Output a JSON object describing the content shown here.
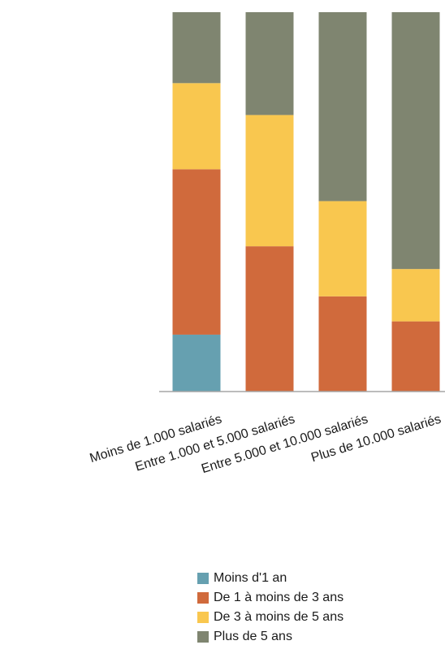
{
  "chart_data": {
    "type": "bar",
    "stacked": true,
    "normalized": true,
    "categories": [
      "Moins de 1.000 salariés",
      "Entre 1.000 et 5.000 salariés",
      "Entre 5.000 et 10.000 salariés",
      "Plus de 10.000 salariés"
    ],
    "series": [
      {
        "name": "Moins d'1 an",
        "color": "#66a0b0",
        "values": [
          15,
          0,
          0,
          0
        ]
      },
      {
        "name": "De 1 à moins de 3 ans",
        "color": "#d06a3c",
        "values": [
          43.6,
          38.3,
          25.1,
          18.5
        ]
      },
      {
        "name": "De 3 à moins de 5 ans",
        "color": "#f9c74f",
        "values": [
          22.7,
          34.6,
          25.1,
          13.8
        ]
      },
      {
        "name": "Plus de 5 ans",
        "color": "#7f8570",
        "values": [
          18.7,
          27.1,
          49.8,
          67.7
        ]
      }
    ],
    "ylim": [
      0,
      100
    ],
    "grid": false,
    "legend": "bottom"
  }
}
